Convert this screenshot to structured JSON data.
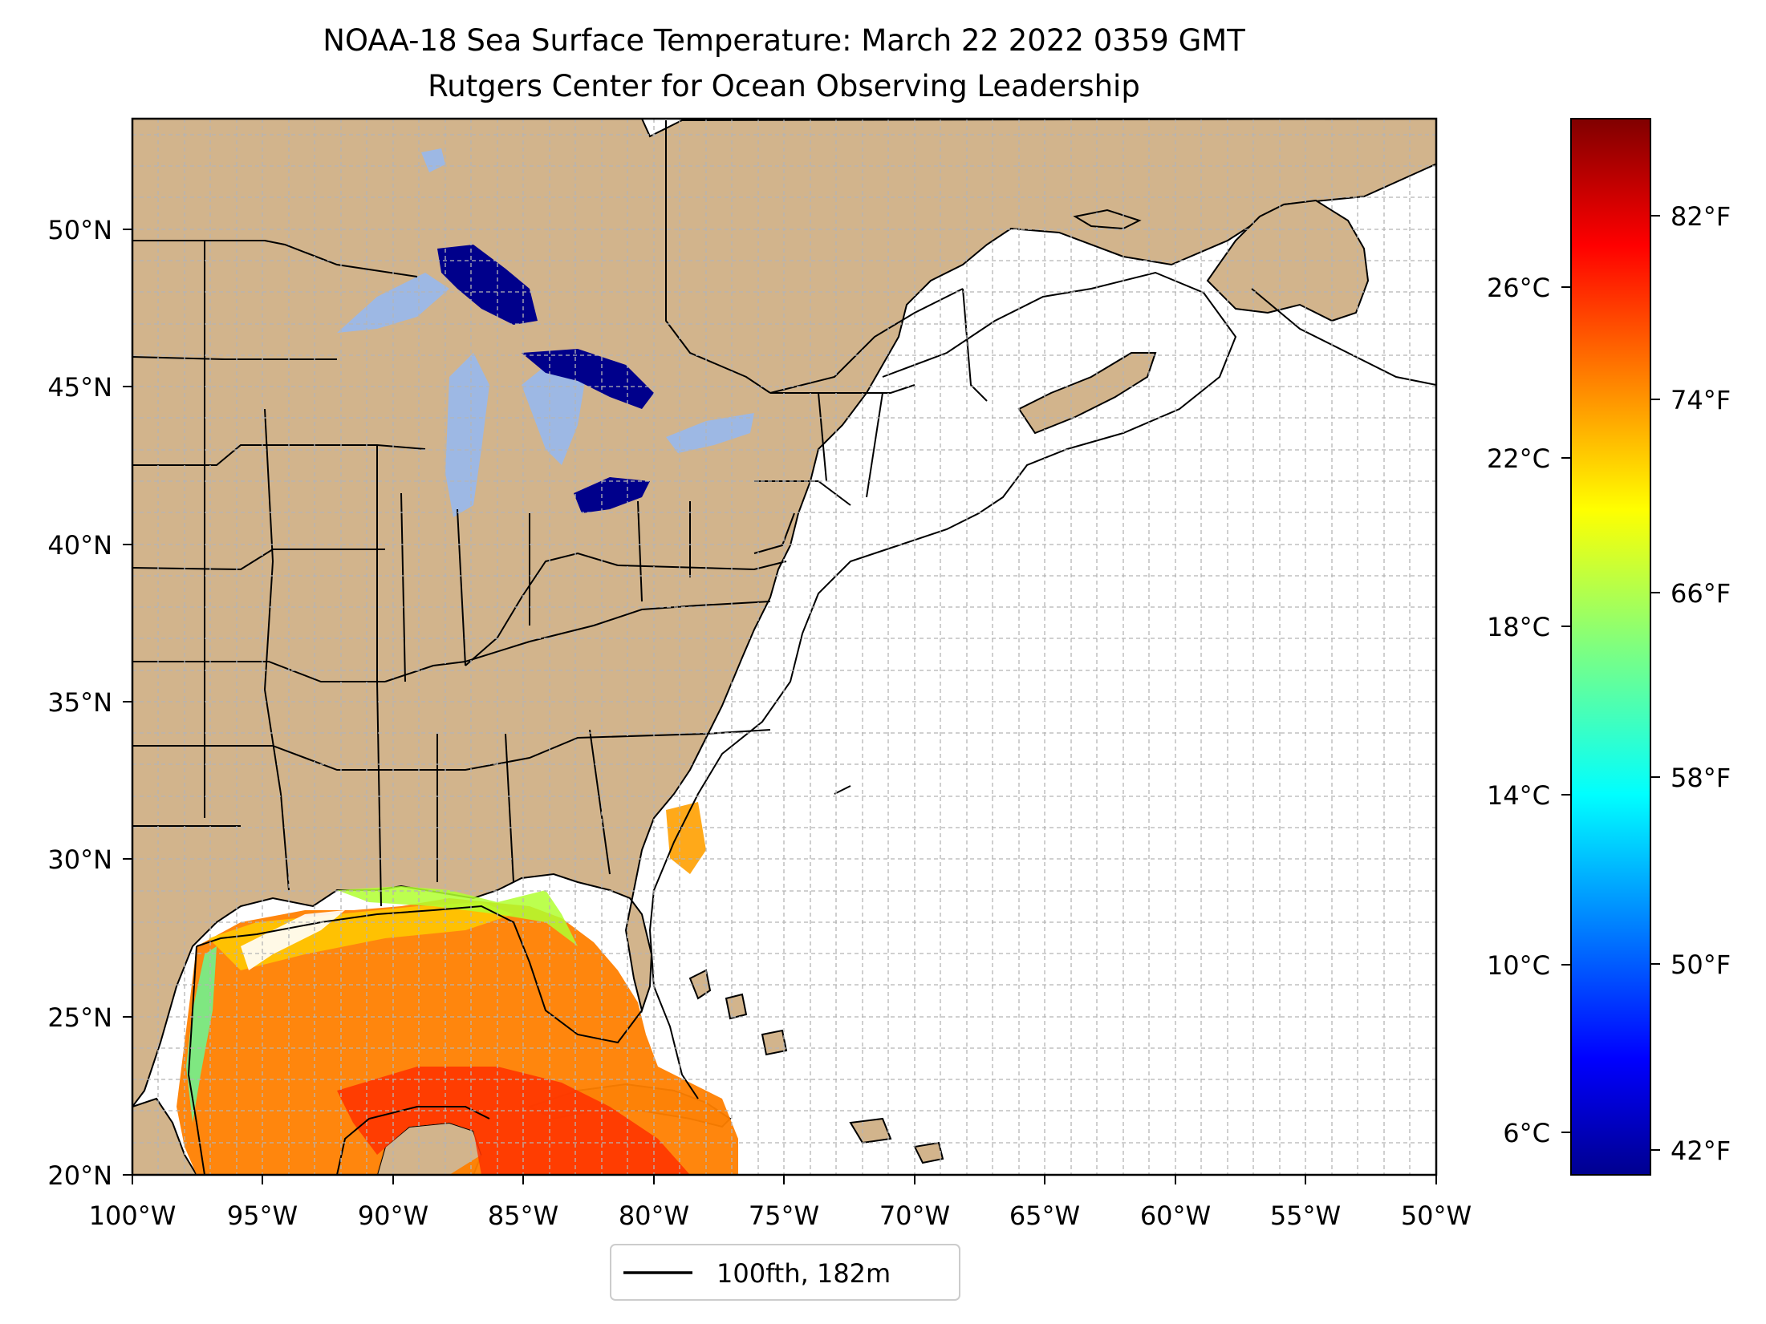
{
  "title_line1": "NOAA-18 Sea Surface Temperature: March 22 2022 0359 GMT",
  "title_line2": "Rutgers Center for Ocean Observing Leadership",
  "map": {
    "lon_ticks": [
      "100°W",
      "95°W",
      "90°W",
      "85°W",
      "80°W",
      "75°W",
      "70°W",
      "65°W",
      "60°W",
      "55°W",
      "50°W"
    ],
    "lat_ticks": [
      "20°N",
      "25°N",
      "30°N",
      "35°N",
      "40°N",
      "45°N",
      "50°N"
    ],
    "lon_range": [
      -100,
      -50
    ],
    "lat_range": [
      20,
      52.7
    ],
    "gridlines": true,
    "land_color": "#d2b48c",
    "ocean_color": "#ffffff",
    "lake_color": "#9db8e4",
    "cold_lake_color": "#00008b"
  },
  "legend": {
    "label": "100fth, 182m",
    "placement": "bottom-center"
  },
  "colorbar": {
    "colormap": "jet",
    "range_celsius": [
      5,
      30.5
    ],
    "celsius_ticks": [
      "26°C",
      "22°C",
      "18°C",
      "14°C",
      "10°C",
      "6°C"
    ],
    "fahrenheit_ticks": [
      "82°F",
      "74°F",
      "66°F",
      "58°F",
      "50°F",
      "42°F"
    ]
  }
}
